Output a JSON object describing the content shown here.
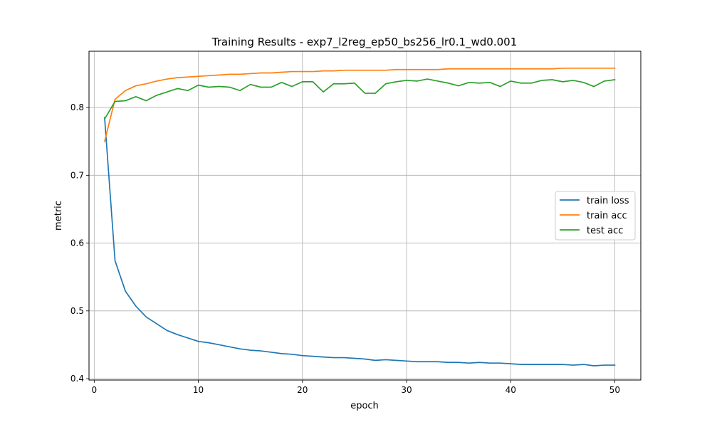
{
  "chart_data": {
    "type": "line",
    "title": "Training Results - exp7_l2reg_ep50_bs256_lr0.1_wd0.001",
    "xlabel": "epoch",
    "ylabel": "metric",
    "xlim": [
      -0.5,
      52.5
    ],
    "ylim": [
      0.398,
      0.883
    ],
    "xticks": [
      0,
      10,
      20,
      30,
      40,
      50
    ],
    "yticks": [
      0.4,
      0.5,
      0.6,
      0.7,
      0.8
    ],
    "grid": true,
    "legend_position": "center-right",
    "x": [
      1,
      2,
      3,
      4,
      5,
      6,
      7,
      8,
      9,
      10,
      11,
      12,
      13,
      14,
      15,
      16,
      17,
      18,
      19,
      20,
      21,
      22,
      23,
      24,
      25,
      26,
      27,
      28,
      29,
      30,
      31,
      32,
      33,
      34,
      35,
      36,
      37,
      38,
      39,
      40,
      41,
      42,
      43,
      44,
      45,
      46,
      47,
      48,
      49,
      50
    ],
    "series": [
      {
        "name": "train loss",
        "color": "#1f77b4",
        "values": [
          0.785,
          0.574,
          0.529,
          0.507,
          0.491,
          0.481,
          0.471,
          0.465,
          0.46,
          0.455,
          0.453,
          0.45,
          0.447,
          0.444,
          0.442,
          0.441,
          0.439,
          0.437,
          0.436,
          0.434,
          0.433,
          0.432,
          0.431,
          0.431,
          0.43,
          0.429,
          0.427,
          0.428,
          0.427,
          0.426,
          0.425,
          0.425,
          0.425,
          0.424,
          0.424,
          0.423,
          0.424,
          0.423,
          0.423,
          0.422,
          0.421,
          0.421,
          0.421,
          0.421,
          0.421,
          0.42,
          0.421,
          0.419,
          0.42,
          0.42
        ]
      },
      {
        "name": "train acc",
        "color": "#ff7f0e",
        "values": [
          0.75,
          0.812,
          0.825,
          0.832,
          0.835,
          0.839,
          0.842,
          0.844,
          0.845,
          0.846,
          0.847,
          0.848,
          0.849,
          0.849,
          0.85,
          0.851,
          0.851,
          0.852,
          0.853,
          0.853,
          0.853,
          0.854,
          0.854,
          0.855,
          0.855,
          0.855,
          0.855,
          0.855,
          0.856,
          0.856,
          0.856,
          0.856,
          0.856,
          0.857,
          0.857,
          0.857,
          0.857,
          0.857,
          0.857,
          0.857,
          0.857,
          0.857,
          0.857,
          0.857,
          0.858,
          0.858,
          0.858,
          0.858,
          0.858,
          0.858
        ]
      },
      {
        "name": "test acc",
        "color": "#2ca02c",
        "values": [
          0.783,
          0.809,
          0.81,
          0.816,
          0.81,
          0.818,
          0.823,
          0.828,
          0.825,
          0.833,
          0.83,
          0.831,
          0.83,
          0.825,
          0.834,
          0.83,
          0.83,
          0.837,
          0.831,
          0.838,
          0.838,
          0.823,
          0.835,
          0.835,
          0.836,
          0.821,
          0.821,
          0.835,
          0.838,
          0.84,
          0.839,
          0.842,
          0.839,
          0.836,
          0.832,
          0.837,
          0.836,
          0.837,
          0.831,
          0.839,
          0.836,
          0.836,
          0.84,
          0.841,
          0.838,
          0.84,
          0.837,
          0.831,
          0.839,
          0.841
        ]
      }
    ]
  }
}
